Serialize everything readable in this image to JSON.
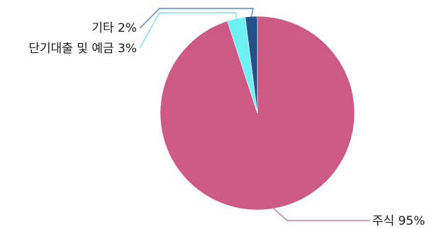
{
  "chart_data": {
    "type": "pie",
    "title": "",
    "slices": [
      {
        "label": "주식",
        "value": 95,
        "display": "주식 95%",
        "color": "#cc5a84"
      },
      {
        "label": "단기대출 및 예금",
        "value": 3,
        "display": "단기대출 및 예금 3%",
        "color": "#6ef0f2"
      },
      {
        "label": "기타",
        "value": 2,
        "display": "기타 2%",
        "color": "#24508a"
      }
    ],
    "legend": "none",
    "data_labels": "outside-with-leader-lines"
  }
}
